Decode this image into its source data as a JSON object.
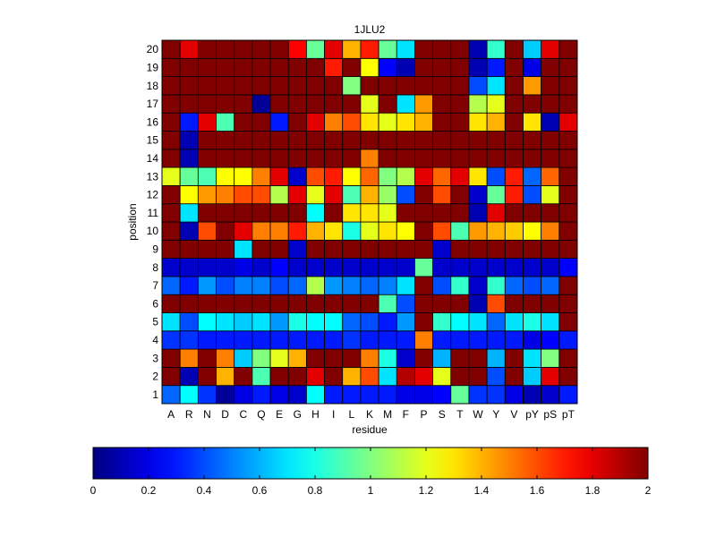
{
  "chart_data": {
    "type": "heatmap",
    "title": "1JLU2",
    "xlabel": "residue",
    "ylabel": "position",
    "x_categories": [
      "A",
      "R",
      "N",
      "D",
      "C",
      "Q",
      "E",
      "G",
      "H",
      "I",
      "L",
      "K",
      "M",
      "F",
      "P",
      "S",
      "T",
      "W",
      "Y",
      "V",
      "pY",
      "pS",
      "pT"
    ],
    "y_categories": [
      "1",
      "2",
      "3",
      "4",
      "5",
      "6",
      "7",
      "8",
      "9",
      "10",
      "11",
      "12",
      "13",
      "14",
      "15",
      "16",
      "17",
      "18",
      "19",
      "20"
    ],
    "colormap": "jet",
    "clim": [
      0,
      2
    ],
    "colorbar": {
      "ticks": [
        0,
        0.2,
        0.4,
        0.6,
        0.8,
        1,
        1.2,
        1.4,
        1.6,
        1.8,
        2
      ],
      "tick_labels": [
        "0",
        "0.2",
        "0.4",
        "0.6",
        "0.8",
        "1",
        "1.2",
        "1.4",
        "1.6",
        "1.8",
        "2"
      ],
      "placement": "bottom"
    },
    "values": [
      [
        0.45,
        0.75,
        0.35,
        0.05,
        0.2,
        0.3,
        0.2,
        0.15,
        0.75,
        0.3,
        0.3,
        0.3,
        0.3,
        0.2,
        0.2,
        0.25,
        0.95,
        0.35,
        0.35,
        0.2,
        0.1,
        0.15,
        0.3
      ],
      [
        2.0,
        0.1,
        2.0,
        1.4,
        2.0,
        0.9,
        2.0,
        2.0,
        1.8,
        2.0,
        1.4,
        1.6,
        0.7,
        1.9,
        1.8,
        1.2,
        2.0,
        2.0,
        0.4,
        2.0,
        0.65,
        1.8,
        2.0
      ],
      [
        2.0,
        1.5,
        2.0,
        1.5,
        0.65,
        1.0,
        1.2,
        1.4,
        2.0,
        2.0,
        2.0,
        1.5,
        0.8,
        0.15,
        2.0,
        0.6,
        2.0,
        2.0,
        0.6,
        2.0,
        0.7,
        1.0,
        2.0
      ],
      [
        0.35,
        0.35,
        0.3,
        0.3,
        0.3,
        0.3,
        0.3,
        0.3,
        0.3,
        0.3,
        0.35,
        0.3,
        0.3,
        0.3,
        1.5,
        0.3,
        0.3,
        0.3,
        0.3,
        0.3,
        0.2,
        0.25,
        0.3
      ],
      [
        0.7,
        0.4,
        0.75,
        0.7,
        0.65,
        0.7,
        0.55,
        0.8,
        0.75,
        0.75,
        0.45,
        0.4,
        0.3,
        0.55,
        2.0,
        0.85,
        0.75,
        0.7,
        0.45,
        0.7,
        0.8,
        0.7,
        2.0
      ],
      [
        2.0,
        2.0,
        2.0,
        2.0,
        2.0,
        2.0,
        2.0,
        2.0,
        2.0,
        2.0,
        2.0,
        2.0,
        0.9,
        0.4,
        2.0,
        2.0,
        2.0,
        0.1,
        1.6,
        2.0,
        2.0,
        2.0,
        2.0
      ],
      [
        0.45,
        0.3,
        0.55,
        0.4,
        0.5,
        0.5,
        0.4,
        0.45,
        1.1,
        0.55,
        0.5,
        0.45,
        0.5,
        0.7,
        2.0,
        0.4,
        0.85,
        0.15,
        0.85,
        0.45,
        0.4,
        0.45,
        2.0
      ],
      [
        0.15,
        0.15,
        0.15,
        0.15,
        0.2,
        0.15,
        0.25,
        0.15,
        0.15,
        0.15,
        0.15,
        0.15,
        0.15,
        0.15,
        0.95,
        0.15,
        0.15,
        0.15,
        0.15,
        0.15,
        0.15,
        0.15,
        0.25
      ],
      [
        2.0,
        2.0,
        2.0,
        2.0,
        0.7,
        2.0,
        2.0,
        0.15,
        2.0,
        2.0,
        2.0,
        2.0,
        2.0,
        2.0,
        2.0,
        0.15,
        2.0,
        2.0,
        2.0,
        2.0,
        2.0,
        2.0,
        2.0
      ],
      [
        2.0,
        0.1,
        1.6,
        2.0,
        1.8,
        1.5,
        1.5,
        1.7,
        1.4,
        1.3,
        0.8,
        1.2,
        1.3,
        1.25,
        2.0,
        1.6,
        0.9,
        1.45,
        1.4,
        1.35,
        1.25,
        1.5,
        2.0
      ],
      [
        2.0,
        0.7,
        2.0,
        2.0,
        2.0,
        2.0,
        2.0,
        2.0,
        0.75,
        2.0,
        1.3,
        1.3,
        1.2,
        2.0,
        2.0,
        2.0,
        2.0,
        0.1,
        1.8,
        2.0,
        2.0,
        2.0,
        2.0
      ],
      [
        2.0,
        1.25,
        1.45,
        1.5,
        1.6,
        1.6,
        1.1,
        1.8,
        1.2,
        1.8,
        0.9,
        1.4,
        1.05,
        0.4,
        2.0,
        1.6,
        2.0,
        0.15,
        0.95,
        1.7,
        0.4,
        1.2,
        2.0
      ],
      [
        1.2,
        0.95,
        0.9,
        1.25,
        1.25,
        1.5,
        1.8,
        0.15,
        1.6,
        1.7,
        1.25,
        1.55,
        1.0,
        1.1,
        1.8,
        1.55,
        1.8,
        1.3,
        0.4,
        1.7,
        0.45,
        1.55,
        2.0
      ],
      [
        2.0,
        0.1,
        2.0,
        2.0,
        2.0,
        2.0,
        2.0,
        2.0,
        2.0,
        2.0,
        2.0,
        1.5,
        2.0,
        2.0,
        2.0,
        2.0,
        2.0,
        2.0,
        2.0,
        2.0,
        2.0,
        2.0,
        2.0
      ],
      [
        2.0,
        0.1,
        2.0,
        2.0,
        2.0,
        2.0,
        2.0,
        2.0,
        2.0,
        2.0,
        2.0,
        2.0,
        2.0,
        2.0,
        2.0,
        2.0,
        2.0,
        2.0,
        2.0,
        2.0,
        2.0,
        2.0,
        2.0
      ],
      [
        2.0,
        0.3,
        1.8,
        0.9,
        2.0,
        2.0,
        0.3,
        2.0,
        1.8,
        1.5,
        1.6,
        1.3,
        1.2,
        1.3,
        1.4,
        2.0,
        2.0,
        1.3,
        1.4,
        2.0,
        1.3,
        0.1,
        1.8
      ],
      [
        2.0,
        2.0,
        2.0,
        2.0,
        2.0,
        0.05,
        2.0,
        2.0,
        2.0,
        2.0,
        2.0,
        1.2,
        2.0,
        0.7,
        1.45,
        2.0,
        2.0,
        1.1,
        1.2,
        2.0,
        2.0,
        2.0,
        2.0
      ],
      [
        2.0,
        2.0,
        2.0,
        2.0,
        2.0,
        2.0,
        2.0,
        2.0,
        2.0,
        2.0,
        1.0,
        2.0,
        2.0,
        2.0,
        2.0,
        2.0,
        2.0,
        0.4,
        0.7,
        2.0,
        1.45,
        2.0,
        2.0
      ],
      [
        2.0,
        2.0,
        2.0,
        2.0,
        2.0,
        2.0,
        2.0,
        2.0,
        2.0,
        1.7,
        2.0,
        1.25,
        0.25,
        0.1,
        2.0,
        2.0,
        2.0,
        0.1,
        0.3,
        2.0,
        0.2,
        2.0,
        2.0
      ],
      [
        2.0,
        1.8,
        2.0,
        2.0,
        2.0,
        2.0,
        2.0,
        1.75,
        0.95,
        1.8,
        1.4,
        1.7,
        0.95,
        0.7,
        2.0,
        2.0,
        2.0,
        0.1,
        0.85,
        2.0,
        0.65,
        1.8,
        2.0
      ]
    ]
  }
}
